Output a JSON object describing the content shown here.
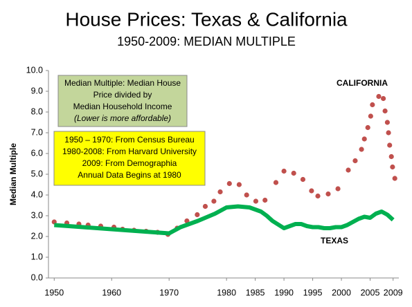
{
  "chart_data": {
    "type": "line",
    "title": "House Prices: Texas & California",
    "subtitle": "1950-2009: MEDIAN MULTIPLE",
    "y_label": "Median Multiple",
    "xlim": [
      1949,
      2010
    ],
    "xticks": [
      1950,
      1960,
      1970,
      1980,
      1985,
      1990,
      1995,
      2000,
      2005,
      2009
    ],
    "ylim": [
      0,
      10
    ],
    "yticks": [
      {
        "value": 0,
        "label": "0.0"
      },
      {
        "value": 1,
        "label": "1.0"
      },
      {
        "value": 2,
        "label": "2.0"
      },
      {
        "value": 3,
        "label": "3.0"
      },
      {
        "value": 4,
        "label": "4.0"
      },
      {
        "value": 5,
        "label": "5.0"
      },
      {
        "value": 6,
        "label": "6.0"
      },
      {
        "value": 7,
        "label": "7.0"
      },
      {
        "value": 8,
        "label": "8.0"
      },
      {
        "value": 9,
        "label": "9.0"
      },
      {
        "value": 10,
        "label": "10.0"
      }
    ],
    "grid": false,
    "series": [
      {
        "name": "CALIFORNIA",
        "color": "#c0504d",
        "mode": "markers",
        "x": [
          1950.0,
          1952.2,
          1954.3,
          1955.9,
          1958.1,
          1960.4,
          1961.9,
          1963.9,
          1966.0,
          1968.0,
          1969.8,
          1971.4,
          1973.1,
          1974.9,
          1976.3,
          1977.8,
          1978.9,
          1980.5,
          1982.2,
          1983.5,
          1985.1,
          1986.7,
          1988.6,
          1990.0,
          1991.7,
          1993.3,
          1994.8,
          1995.9,
          1997.7,
          1999.4,
          2001.2,
          2002.4,
          2003.5,
          2004.0,
          2004.6,
          2005.1,
          2005.4,
          2006.5,
          2007.3,
          2007.6,
          2008.0,
          2008.2,
          2008.4,
          2008.7,
          2008.9,
          2009.3
        ],
        "values": [
          2.7,
          2.65,
          2.6,
          2.55,
          2.5,
          2.45,
          2.35,
          2.3,
          2.25,
          2.2,
          2.1,
          2.4,
          2.75,
          3.05,
          3.45,
          3.7,
          4.15,
          4.55,
          4.5,
          4.0,
          3.7,
          3.75,
          4.6,
          5.15,
          5.05,
          4.75,
          4.2,
          3.95,
          4.05,
          4.3,
          5.2,
          5.65,
          6.2,
          6.7,
          7.25,
          7.8,
          8.35,
          8.75,
          8.65,
          8.05,
          7.5,
          7.0,
          6.4,
          5.85,
          5.35,
          4.8
        ]
      },
      {
        "name": "TEXAS",
        "color": "#00b050",
        "mode": "lines",
        "x": [
          1950,
          1955,
          1960,
          1965,
          1970,
          1972,
          1975,
          1978,
          1980,
          1982,
          1984,
          1985,
          1986,
          1987,
          1988,
          1990,
          1991,
          1992,
          1993,
          1994,
          1995,
          1996,
          1997,
          1998,
          1999,
          2000,
          2001,
          2002,
          2003,
          2004,
          2005,
          2006,
          2007,
          2008,
          2009
        ],
        "values": [
          2.55,
          2.45,
          2.35,
          2.25,
          2.15,
          2.45,
          2.75,
          3.1,
          3.4,
          3.45,
          3.4,
          3.3,
          3.2,
          3.0,
          2.75,
          2.4,
          2.5,
          2.6,
          2.6,
          2.5,
          2.45,
          2.45,
          2.4,
          2.4,
          2.45,
          2.45,
          2.55,
          2.7,
          2.85,
          2.95,
          2.9,
          3.1,
          3.2,
          3.05,
          2.8
        ]
      }
    ],
    "annotations": [
      {
        "lines": [
          "Median Multiple: Median House",
          "Price divided by",
          "Median Household Income",
          "(Lower is more affordable)"
        ]
      },
      {
        "lines": [
          "1950 – 1970: From Census Bureau",
          "1980-2008: From Harvard University",
          "2009: From Demographia",
          "Annual Data Begins at 1980"
        ]
      }
    ]
  }
}
